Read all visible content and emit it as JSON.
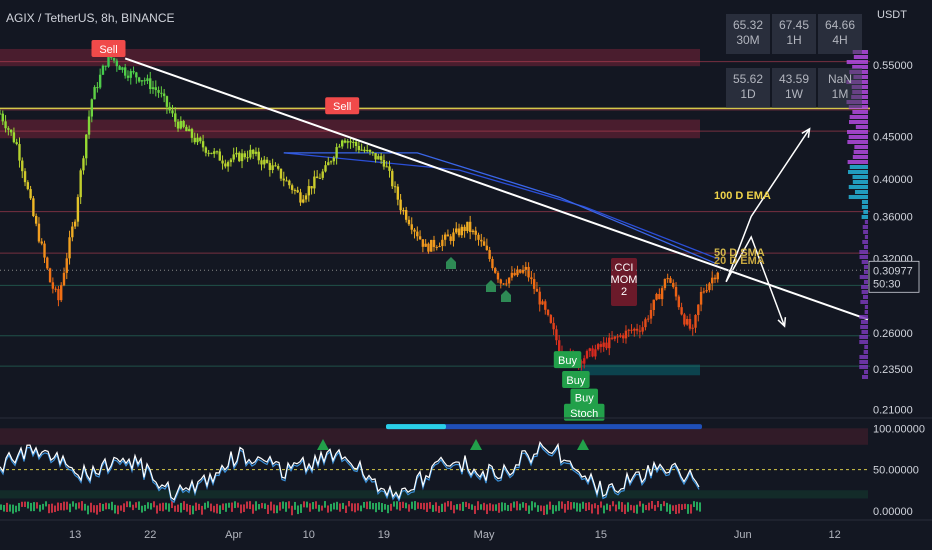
{
  "header": {
    "title": "AGIX / TetherUS, 8h, BINANCE",
    "currency": "USDT"
  },
  "tf_table": [
    {
      "value": "65.32",
      "tf": "30M"
    },
    {
      "value": "67.45",
      "tf": "1H"
    },
    {
      "value": "64.66",
      "tf": "4H"
    },
    {
      "value": "55.62",
      "tf": "1D"
    },
    {
      "value": "43.59",
      "tf": "1W"
    },
    {
      "value": "NaN",
      "tf": "1M"
    }
  ],
  "price_badge": {
    "price": "0.30977",
    "countdown": "50:30"
  },
  "ema_labels": [
    "100 D EMA",
    "50 D SMA",
    "20 D EMA"
  ],
  "cci_label": [
    "CCI",
    "MOM",
    "2"
  ],
  "signals": [
    {
      "text": "Sell",
      "date": "2023-03-17",
      "price": 0.575,
      "type": "sell"
    },
    {
      "text": "Sell",
      "date": "2023-04-14",
      "price": 0.49,
      "type": "sell"
    },
    {
      "text": "Buy",
      "date": "2023-05-11",
      "price": 0.241,
      "type": "buy"
    },
    {
      "text": "Buy",
      "date": "2023-05-12",
      "price": 0.228,
      "type": "buy"
    },
    {
      "text": "Buy",
      "date": "2023-05-13",
      "price": 0.217,
      "type": "buy"
    },
    {
      "text": "Stoch",
      "date": "2023-05-13",
      "price": 0.208,
      "type": "buy"
    }
  ],
  "chart_data": [
    {
      "type": "candlestick",
      "title": "AGIX / TetherUS, 8h, BINANCE",
      "y_scale": "log",
      "ylim": [
        0.205,
        0.62
      ],
      "xlim": [
        "2023-03-04",
        "2023-06-16"
      ],
      "y_ticks": [
        0.55,
        0.45,
        0.4,
        0.36,
        0.32,
        0.26,
        0.235,
        0.21
      ],
      "y_tick_labels": [
        "0.55000",
        "0.45000",
        "0.40000",
        "0.36000",
        "0.32000",
        "0.26000",
        "0.23500",
        "0.21000"
      ],
      "x_ticks": [
        "2023-03-13",
        "2023-03-22",
        "2023-04-01",
        "2023-04-10",
        "2023-04-19",
        "2023-05-01",
        "2023-05-15",
        "2023-06-01",
        "2023-06-12"
      ],
      "x_tick_labels": [
        "13",
        "22",
        "Apr",
        "10",
        "19",
        "May",
        "15",
        "Jun",
        "12"
      ],
      "close_path": [
        [
          "2023-03-04",
          0.48
        ],
        [
          "2023-03-06",
          0.44
        ],
        [
          "2023-03-08",
          0.36
        ],
        [
          "2023-03-10",
          0.3
        ],
        [
          "2023-03-11",
          0.285
        ],
        [
          "2023-03-13",
          0.36
        ],
        [
          "2023-03-15",
          0.5
        ],
        [
          "2023-03-17",
          0.565
        ],
        [
          "2023-03-19",
          0.54
        ],
        [
          "2023-03-21",
          0.53
        ],
        [
          "2023-03-23",
          0.51
        ],
        [
          "2023-03-25",
          0.47
        ],
        [
          "2023-03-28",
          0.44
        ],
        [
          "2023-03-31",
          0.42
        ],
        [
          "2023-04-03",
          0.43
        ],
        [
          "2023-04-06",
          0.41
        ],
        [
          "2023-04-09",
          0.38
        ],
        [
          "2023-04-12",
          0.41
        ],
        [
          "2023-04-14",
          0.45
        ],
        [
          "2023-04-17",
          0.43
        ],
        [
          "2023-04-19",
          0.42
        ],
        [
          "2023-04-21",
          0.37
        ],
        [
          "2023-04-24",
          0.33
        ],
        [
          "2023-04-27",
          0.34
        ],
        [
          "2023-04-29",
          0.35
        ],
        [
          "2023-05-01",
          0.33
        ],
        [
          "2023-05-03",
          0.3
        ],
        [
          "2023-05-06",
          0.31
        ],
        [
          "2023-05-08",
          0.28
        ],
        [
          "2023-05-10",
          0.25
        ],
        [
          "2023-05-12",
          0.24
        ],
        [
          "2023-05-15",
          0.25
        ],
        [
          "2023-05-18",
          0.26
        ],
        [
          "2023-05-20",
          0.265
        ],
        [
          "2023-05-22",
          0.29
        ],
        [
          "2023-05-23",
          0.305
        ],
        [
          "2023-05-25",
          0.27
        ],
        [
          "2023-05-26",
          0.26
        ],
        [
          "2023-05-27",
          0.29
        ],
        [
          "2023-05-29",
          0.31
        ]
      ],
      "trendline": [
        [
          "2023-03-19",
          0.56
        ],
        [
          "2023-06-16",
          0.27
        ]
      ],
      "ema_100": [
        [
          "2023-04-07",
          0.43
        ],
        [
          "2023-04-28",
          0.41
        ],
        [
          "2023-05-13",
          0.37
        ],
        [
          "2023-05-29",
          0.32
        ]
      ],
      "ema_50": [
        [
          "2023-04-07",
          0.43
        ],
        [
          "2023-04-23",
          0.43
        ],
        [
          "2023-05-10",
          0.38
        ],
        [
          "2023-05-29",
          0.315
        ]
      ],
      "hlines": [
        0.555,
        0.485,
        0.457,
        0.365,
        0.325,
        0.297,
        0.258,
        0.237
      ],
      "horizontal_level": 0.487,
      "projections": [
        [
          [
            "2023-05-30",
            0.3
          ],
          [
            "2023-06-02",
            0.36
          ],
          [
            "2023-06-09",
            0.46
          ]
        ],
        [
          [
            "2023-05-30",
            0.3
          ],
          [
            "2023-06-02",
            0.34
          ],
          [
            "2023-06-06",
            0.265
          ]
        ]
      ],
      "last_price": 0.30977
    },
    {
      "type": "line",
      "name": "oscillator",
      "ylim": [
        -5,
        110
      ],
      "y_ticks": [
        100,
        50,
        0
      ],
      "y_tick_labels": [
        "100.00000",
        "50.00000",
        "0.00000"
      ],
      "level": 50
    }
  ]
}
